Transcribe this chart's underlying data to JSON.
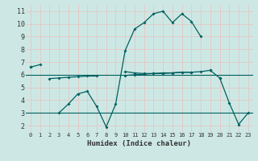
{
  "xlabel": "Humidex (Indice chaleur)",
  "background_color": "#cde8e4",
  "grid_color": "#e8c0c0",
  "line_color": "#006060",
  "x": [
    0,
    1,
    2,
    3,
    4,
    5,
    6,
    7,
    8,
    9,
    10,
    11,
    12,
    13,
    14,
    15,
    16,
    17,
    18,
    19,
    20,
    21,
    22,
    23
  ],
  "y_top": [
    6.6,
    6.8,
    null,
    null,
    null,
    null,
    null,
    null,
    null,
    null,
    6.25,
    6.15,
    6.1,
    6.1,
    6.1,
    6.15,
    6.2,
    6.2,
    6.25,
    6.35,
    null,
    null,
    null,
    null
  ],
  "y_mid": [
    6.6,
    null,
    5.7,
    5.75,
    5.8,
    5.85,
    5.9,
    5.9,
    null,
    null,
    5.95,
    6.0,
    6.05,
    6.1,
    6.15,
    6.15,
    6.2,
    6.2,
    null,
    null,
    5.75,
    null,
    null,
    null
  ],
  "y_spike": [
    null,
    null,
    null,
    3.0,
    3.7,
    4.5,
    4.7,
    3.5,
    1.9,
    3.7,
    7.9,
    9.6,
    10.1,
    10.8,
    11.0,
    10.1,
    10.8,
    10.2,
    9.0,
    null,
    null,
    null,
    null,
    null
  ],
  "y_right": [
    null,
    null,
    null,
    null,
    null,
    null,
    null,
    null,
    null,
    null,
    null,
    null,
    null,
    null,
    null,
    null,
    null,
    null,
    null,
    6.35,
    5.75,
    3.8,
    2.1,
    3.0
  ],
  "y_hline1": 3.0,
  "y_hline2": 6.0,
  "ylim": [
    1.5,
    11.5
  ],
  "xlim": [
    -0.5,
    23.5
  ],
  "yticks": [
    2,
    3,
    4,
    5,
    6,
    7,
    8,
    9,
    10,
    11
  ],
  "xticks": [
    0,
    1,
    2,
    3,
    4,
    5,
    6,
    7,
    8,
    9,
    10,
    11,
    12,
    13,
    14,
    15,
    16,
    17,
    18,
    19,
    20,
    21,
    22,
    23
  ],
  "xticklabels": [
    "0",
    "1",
    "2",
    "3",
    "4",
    "5",
    "6",
    "7",
    "8",
    "9",
    "10",
    "11",
    "12",
    "13",
    "14",
    "15",
    "16",
    "17",
    "18",
    "19",
    "20",
    "21",
    "22",
    "23"
  ]
}
